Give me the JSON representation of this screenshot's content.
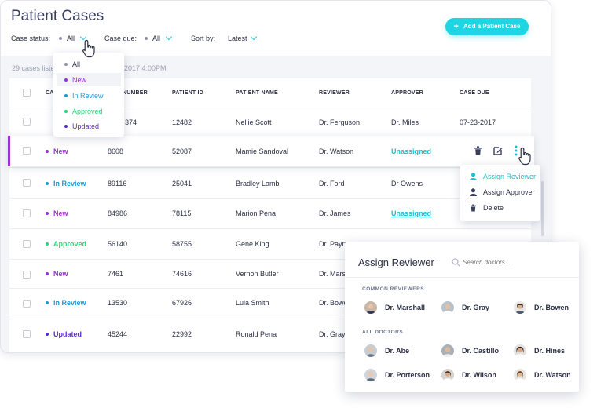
{
  "header": {
    "title": "Patient Cases",
    "case_status_label": "Case status:",
    "case_status_value": "All",
    "case_due_label": "Case due:",
    "case_due_value": "All",
    "sort_label": "Sort by:",
    "sort_value": "Latest",
    "add_button": "Add a Patient Case",
    "cases_listed": "29 cases listed",
    "cases_time": "2017 4:00PM"
  },
  "status_dropdown": {
    "options": [
      {
        "label": "All",
        "color": "#8e93a8"
      },
      {
        "label": "New",
        "color": "#9b2fd6"
      },
      {
        "label": "In Review",
        "color": "#1e9bd7"
      },
      {
        "label": "Approved",
        "color": "#2ed47a"
      },
      {
        "label": "Updated",
        "color": "#5b2bc2"
      }
    ]
  },
  "table": {
    "columns": [
      "CA",
      "NUMBER",
      "PATIENT ID",
      "PATIENT NAME",
      "REVIEWER",
      "APPROVER",
      "CASE DUE"
    ],
    "rows": [
      {
        "status": "",
        "number": "374",
        "patient_id": "12482",
        "name": "Nellie Scott",
        "reviewer": "Dr. Ferguson",
        "approver": "Dr. Miles",
        "due": "07-23-2017"
      },
      {
        "status": "New",
        "number": "8608",
        "patient_id": "52087",
        "name": "Mamie Sandoval",
        "reviewer": "Dr. Watson",
        "approver": "Unassigned",
        "due": ""
      },
      {
        "status": "In Review",
        "number": "89116",
        "patient_id": "25041",
        "name": "Bradley Lamb",
        "reviewer": "Dr. Ford",
        "approver": "Dr Owens",
        "due": ""
      },
      {
        "status": "New",
        "number": "84986",
        "patient_id": "78115",
        "name": "Marion Pena",
        "reviewer": "Dr. James",
        "approver": "Unassigned",
        "due": ""
      },
      {
        "status": "Approved",
        "number": "56140",
        "patient_id": "58755",
        "name": "Gene King",
        "reviewer": "Dr. Payne",
        "approver": "",
        "due": ""
      },
      {
        "status": "New",
        "number": "7461",
        "patient_id": "74616",
        "name": "Vernon Butler",
        "reviewer": "Dr. Marsh",
        "approver": "",
        "due": ""
      },
      {
        "status": "In Review",
        "number": "13530",
        "patient_id": "67926",
        "name": "Lula Smith",
        "reviewer": "Dr. Bowe",
        "approver": "",
        "due": ""
      },
      {
        "status": "Updated",
        "number": "45244",
        "patient_id": "22992",
        "name": "Ronald Pena",
        "reviewer": "Dr. Gray",
        "approver": "",
        "due": ""
      }
    ]
  },
  "row_menu": {
    "items": [
      {
        "label": "Assign Reviewer",
        "icon": "user-icon",
        "color": "#12c3d4"
      },
      {
        "label": "Assign Approver",
        "icon": "user-icon",
        "color": "#2b2f45"
      },
      {
        "label": "Delete",
        "icon": "trash-icon",
        "color": "#2b2f45"
      }
    ]
  },
  "assign_panel": {
    "title": "Assign Reviewer",
    "search_placeholder": "Search doctors...",
    "common_label": "COMMON REVIEWERS",
    "all_label": "ALL DOCTORS",
    "common": [
      "Dr. Marshall",
      "Dr. Gray",
      "Dr. Bowen"
    ],
    "all": [
      "Dr. Abe",
      "Dr. Castillo",
      "Dr. Hines",
      "Dr. Porterson",
      "Dr. Wilson",
      "Dr. Watson"
    ]
  },
  "colors": {
    "accent": "#1ed6e3",
    "new": "#9b2fd6",
    "in_review": "#1e9bd7",
    "approved": "#2ed47a",
    "updated": "#5b2bc2"
  }
}
